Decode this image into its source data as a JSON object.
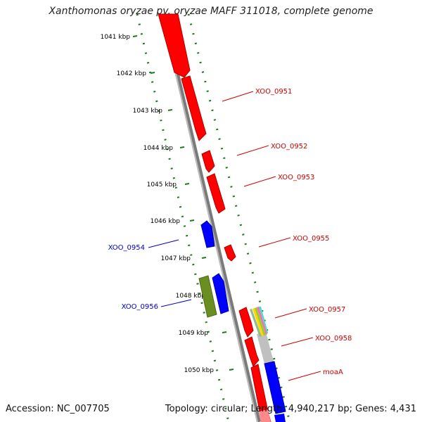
{
  "title": "Xanthomonas oryzae pv. oryzae MAFF 311018, complete genome",
  "footer": {
    "accession": "Accession: NC_007705",
    "summary": "Topology: circular; Length: 4,940,217 bp; Genes: 4,431"
  },
  "colors": {
    "plus_strand": "#ff0000",
    "minus_strand": "#0000ff",
    "other": "#6b8e23",
    "ruler": "#1e7a1e",
    "backbone": "#808080",
    "label_plus": "#cc0000",
    "label_minus": "#0000cc",
    "tick_text": "#000000"
  },
  "ruler_ticks": [
    {
      "label": "1041 kbp"
    },
    {
      "label": "1042 kbp"
    },
    {
      "label": "1043 kbp"
    },
    {
      "label": "1044 kbp"
    },
    {
      "label": "1045 kbp"
    },
    {
      "label": "1046 kbp"
    },
    {
      "label": "1047 kbp"
    },
    {
      "label": "1048 kbp"
    },
    {
      "label": "1049 kbp"
    },
    {
      "label": "1050 kbp"
    }
  ],
  "gene_labels": [
    {
      "name": "XOO_0951",
      "strand": "+"
    },
    {
      "name": "XOO_0952",
      "strand": "+"
    },
    {
      "name": "XOO_0953",
      "strand": "+"
    },
    {
      "name": "XOO_0955",
      "strand": "+"
    },
    {
      "name": "XOO_0957",
      "strand": "+"
    },
    {
      "name": "XOO_0958",
      "strand": "+"
    },
    {
      "name": "moaA",
      "strand": "+"
    },
    {
      "name": "XOO_0954",
      "strand": "-"
    },
    {
      "name": "XOO_0956",
      "strand": "-"
    }
  ]
}
